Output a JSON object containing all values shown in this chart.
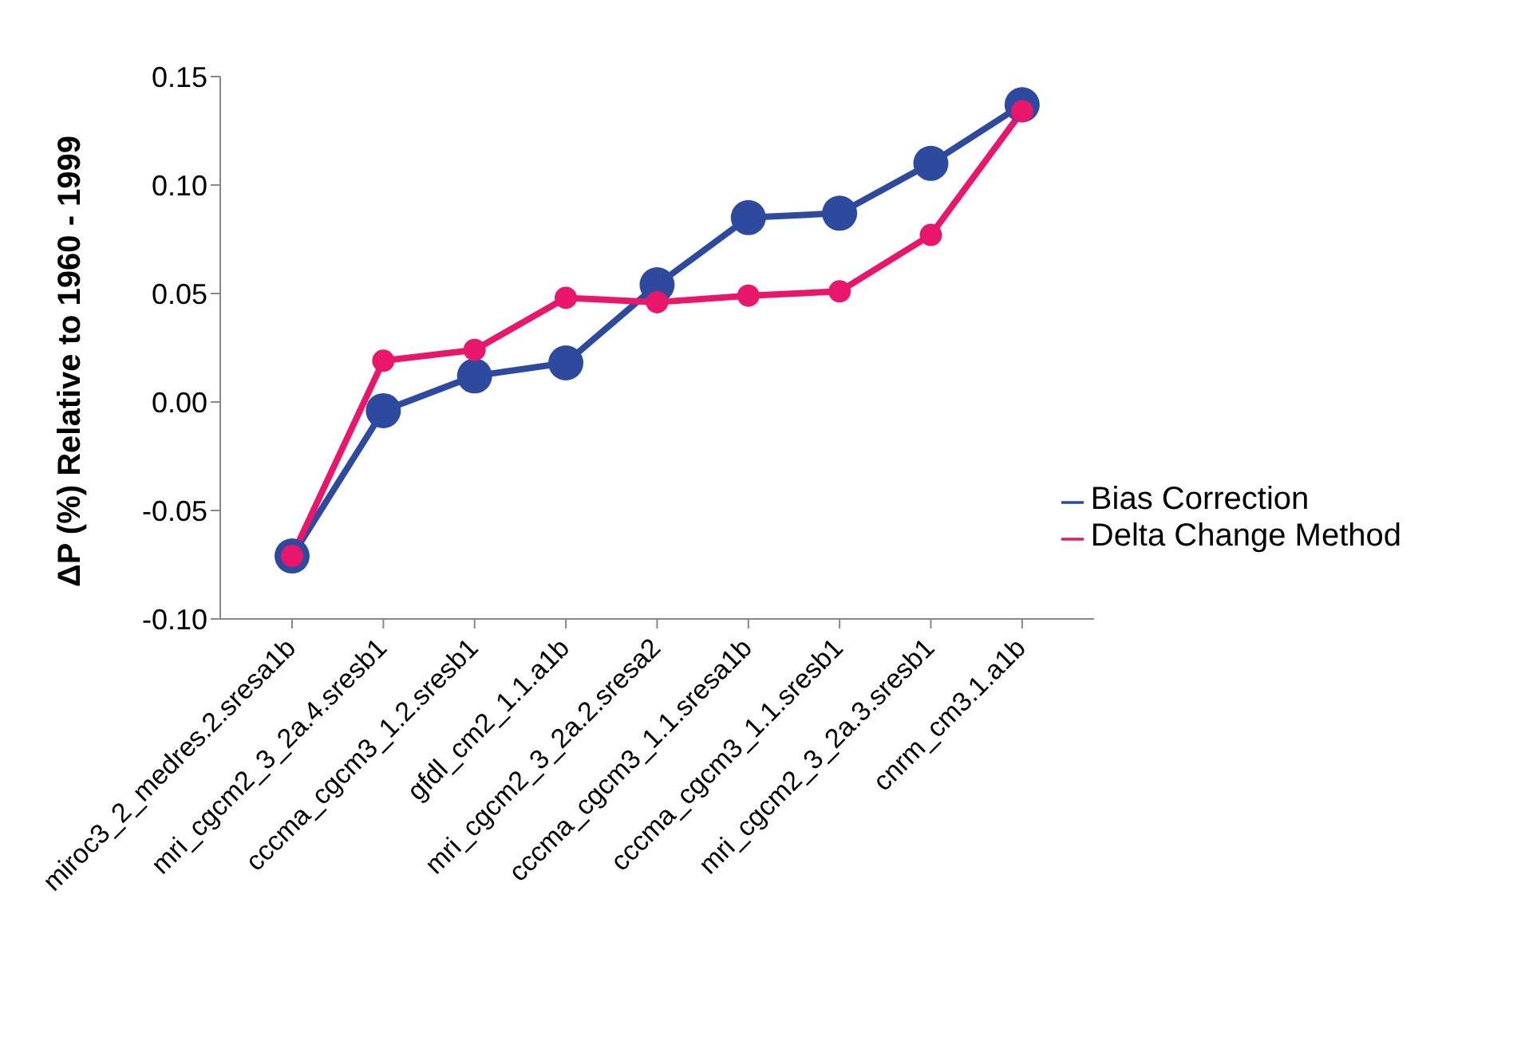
{
  "chart_data": {
    "type": "line",
    "ylabel": "ΔP (%) Relative to 1960 - 1999",
    "categories": [
      "miroc3_2_medres.2.sresa1b",
      "mri_cgcm2_3_2a.4.sresb1",
      "cccma_cgcm3_1.2.sresb1",
      "gfdl_cm2_1.1.a1b",
      "mri_cgcm2_3_2a.2.sresa2",
      "cccma_cgcm3_1.1.sresa1b",
      "cccma_cgcm3_1.1.sresb1",
      "mri_cgcm2_3_2a.3.sresb1",
      "cnrm_cm3.1.a1b"
    ],
    "series": [
      {
        "name": "Bias Correction",
        "color": "#2e4a9e",
        "values": [
          -0.071,
          -0.004,
          0.012,
          0.018,
          0.054,
          0.085,
          0.087,
          0.11,
          0.137
        ]
      },
      {
        "name": "Delta Change Method",
        "color": "#e8176b",
        "values": [
          -0.071,
          0.019,
          0.024,
          0.048,
          0.046,
          0.049,
          0.051,
          0.077,
          0.134
        ]
      }
    ],
    "ylim": [
      -0.1,
      0.15
    ],
    "yticks": [
      {
        "value": -0.1,
        "label": "-0.10"
      },
      {
        "value": -0.05,
        "label": "-0.05"
      },
      {
        "value": 0,
        "label": "0.00"
      },
      {
        "value": 0.05,
        "label": "0.05"
      },
      {
        "value": 0.1,
        "label": "0.10"
      },
      {
        "value": 0.15,
        "label": "0.15"
      }
    ],
    "grid": false,
    "legend": "bottom right",
    "marker": "circle",
    "line_style": "solid"
  }
}
